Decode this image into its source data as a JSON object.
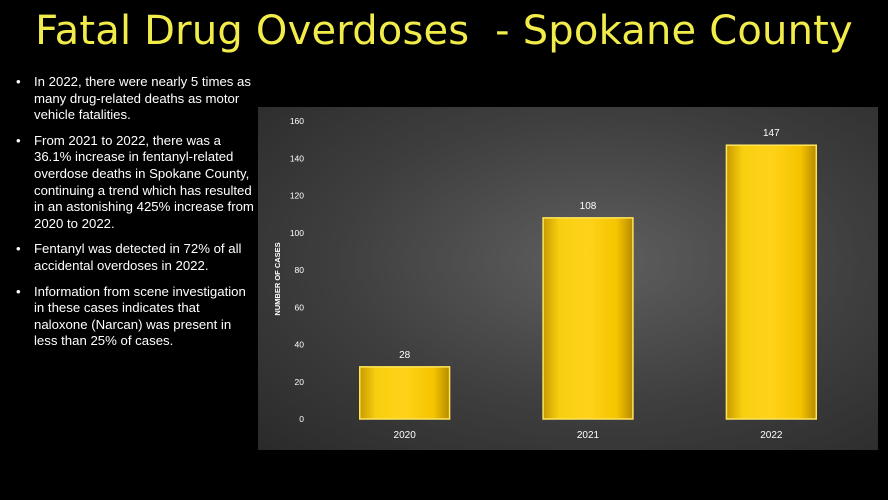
{
  "title": "Fatal Drug Overdoses  - Spokane County",
  "bullets": [
    "In 2022, there were nearly 5 times as many drug-related deaths as motor vehicle fatalities.",
    "From 2021 to 2022, there was a 36.1% increase in fentanyl-related overdose deaths in Spokane County, continuing a trend which has resulted in an astonishing 425% increase from 2020 to 2022.",
    "Fentanyl was detected in 72% of all accidental overdoses in 2022.",
    "Information from scene investigation in these cases indicates that naloxone (Narcan) was present in less than 25% of cases."
  ],
  "bullet_glyph": "•",
  "chart_data": {
    "type": "bar",
    "categories": [
      "2020",
      "2021",
      "2022"
    ],
    "values": [
      28,
      108,
      147
    ],
    "title": "",
    "xlabel": "",
    "ylabel": "NUMBER OF CASES",
    "ylim": [
      0,
      160
    ],
    "yticks": [
      0,
      20,
      40,
      60,
      80,
      100,
      120,
      140,
      160
    ],
    "grid": false,
    "data_labels": true,
    "bar_color": "#f5c400",
    "bar_edge_color": "#ffe55a",
    "background_color": "#4a4a4a"
  }
}
